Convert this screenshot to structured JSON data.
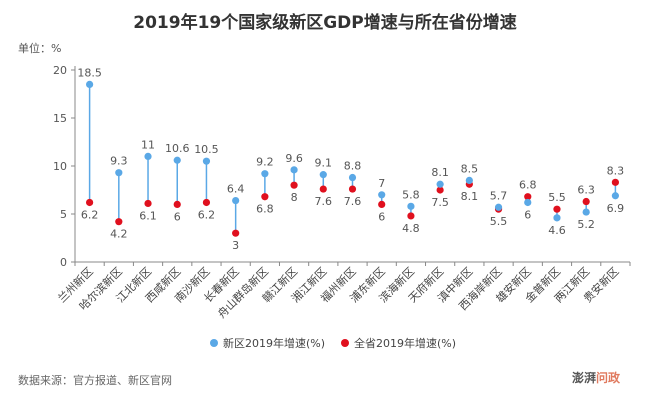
{
  "chart_data": {
    "type": "dumbbell",
    "title": "2019年19个国家级新区GDP增速与所在省份增速",
    "unit_label": "单位：%",
    "ylim": [
      0,
      20
    ],
    "y_ticks": [
      "0",
      "5",
      "10",
      "15",
      "20"
    ],
    "categories": [
      "兰州新区",
      "哈尔滨新区",
      "江北新区",
      "西咸新区",
      "南沙新区",
      "长春新区",
      "舟山群岛新区",
      "赣江新区",
      "湘江新区",
      "福州新区",
      "浦东新区",
      "滨海新区",
      "天府新区",
      "滇中新区",
      "西海岸新区",
      "雄安新区",
      "金普新区",
      "两江新区",
      "贵安新区"
    ],
    "series": [
      {
        "name": "新区2019年增速(%)",
        "color": "#5aa8e6",
        "values": [
          18.5,
          9.3,
          11,
          10.6,
          10.5,
          6.4,
          9.2,
          9.6,
          9.1,
          8.8,
          7,
          5.8,
          8.1,
          8.5,
          5.7,
          6.2,
          4.6,
          5.2,
          6.9
        ],
        "labels": [
          "18.5",
          "9.3",
          "11",
          "10.6",
          "10.5",
          "6.4",
          "9.2",
          "9.6",
          "9.1",
          "8.8",
          "7",
          "5.8",
          "8.1",
          "8.5",
          "5.7",
          "",
          "4.6",
          "5.2",
          "6.9"
        ]
      },
      {
        "name": "全省2019年增速(%)",
        "color": "#e0101e",
        "values": [
          6.2,
          4.2,
          6.1,
          6,
          6.2,
          3,
          6.8,
          8,
          7.6,
          7.6,
          6,
          4.8,
          7.5,
          8.1,
          5.5,
          6.8,
          5.5,
          6.3,
          8.3
        ],
        "labels": [
          "6.2",
          "4.2",
          "6.1",
          "6",
          "6.2",
          "3",
          "6.8",
          "8",
          "7.6",
          "7.6",
          "6",
          "4.8",
          "7.5",
          "8.1",
          "5.5",
          "6.8",
          "5.5",
          "6.3",
          "8.3"
        ]
      }
    ],
    "extra_labels": [
      "6",
      "6.8"
    ]
  },
  "footer": {
    "source": "数据来源：官方报道、新区官网",
    "watermark_main": "澎湃",
    "watermark_accent": "问政"
  }
}
